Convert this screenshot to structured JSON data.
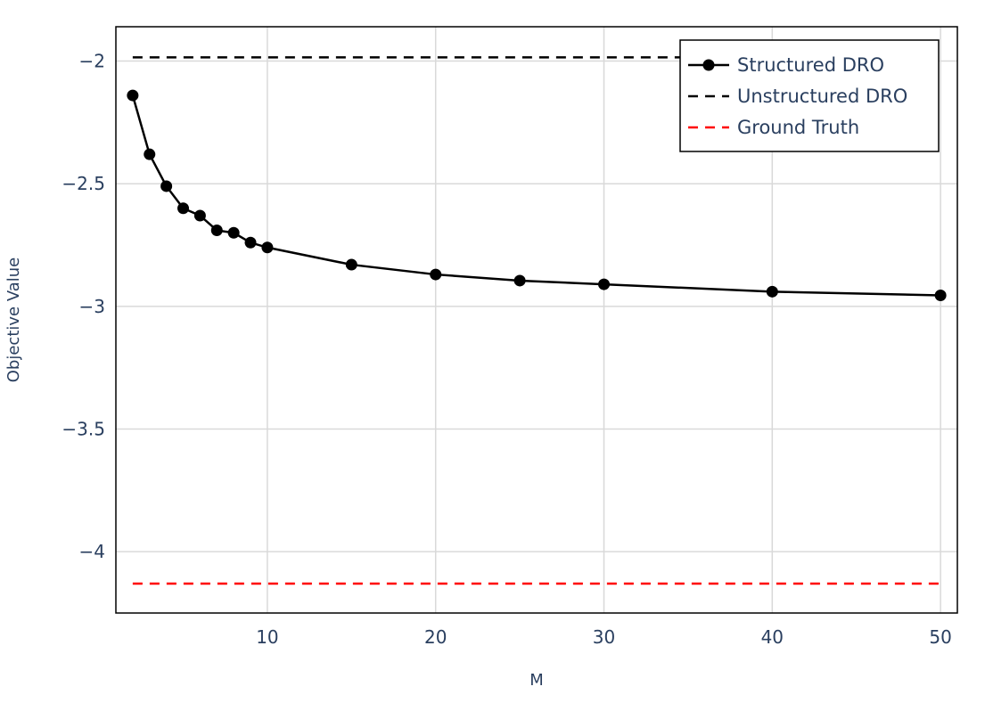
{
  "chart_data": {
    "type": "line",
    "xlabel": "M",
    "ylabel": "Objective Value",
    "xlim": [
      1,
      51
    ],
    "ylim": [
      -4.25,
      -1.86
    ],
    "x_ticks": [
      10,
      20,
      30,
      40,
      50
    ],
    "x_tick_labels": [
      "10",
      "20",
      "30",
      "40",
      "50"
    ],
    "y_ticks": [
      -2,
      -2.5,
      -3,
      -3.5,
      -4
    ],
    "y_tick_labels": [
      "−2",
      "−2.5",
      "−3",
      "−3.5",
      "−4"
    ],
    "grid": true,
    "legend_position": "top-right",
    "series": [
      {
        "name": "Structured DRO",
        "style": "solid-markers",
        "color": "#000000",
        "x": [
          2,
          3,
          4,
          5,
          6,
          7,
          8,
          9,
          10,
          15,
          20,
          25,
          30,
          40,
          50
        ],
        "y": [
          -2.14,
          -2.38,
          -2.51,
          -2.6,
          -2.63,
          -2.69,
          -2.7,
          -2.74,
          -2.76,
          -2.83,
          -2.87,
          -2.895,
          -2.91,
          -2.94,
          -2.955
        ]
      },
      {
        "name": "Unstructured DRO",
        "style": "dashed",
        "color": "#000000",
        "x": [
          2,
          50
        ],
        "y": [
          -1.985,
          -1.985
        ]
      },
      {
        "name": "Ground Truth",
        "style": "dashed",
        "color": "#ff0000",
        "x": [
          2,
          50
        ],
        "y": [
          -4.13,
          -4.13
        ]
      }
    ]
  }
}
